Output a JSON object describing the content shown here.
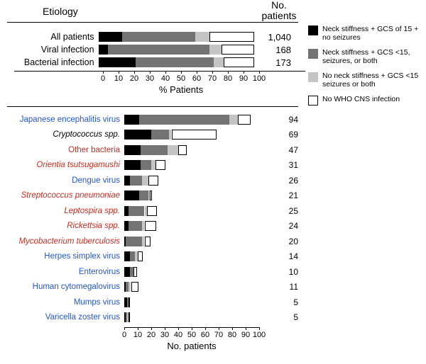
{
  "colors": {
    "seg0": "#000000",
    "seg1": "#737373",
    "seg2": "#c4c4c4",
    "seg3": "#ffffff",
    "border": "#000000"
  },
  "headers": {
    "etiology": "Etiology",
    "no_patients_line1": "No.",
    "no_patients_line2": "patients"
  },
  "axis_top": {
    "min": 0,
    "max": 100,
    "step": 10,
    "title": "% Patients"
  },
  "axis_bot": {
    "min": 0,
    "max": 100,
    "step": 10,
    "title": "No. patients"
  },
  "legend": [
    {
      "swatch": 0,
      "text": "Neck stiffness + GCS of 15 + no seizures"
    },
    {
      "swatch": 1,
      "text": "Neck stiffness + GCS <15, seizures, or both"
    },
    {
      "swatch": 2,
      "text": "No neck stiffness + GCS <15 seizures or both"
    },
    {
      "swatch": 3,
      "text": "No WHO CNS infection"
    }
  ],
  "top": [
    {
      "label": "All patients",
      "count": "1,040",
      "seg": [
        15,
        47,
        9,
        29
      ]
    },
    {
      "label": "Viral infection",
      "count": "168",
      "seg": [
        6,
        65,
        8,
        21
      ]
    },
    {
      "label": "Bacterial infection",
      "count": "173",
      "seg": [
        24,
        50,
        6,
        20
      ]
    }
  ],
  "bot": [
    {
      "label": "Japanese encephalitis virus",
      "cls": "blue",
      "count": "94",
      "seg": [
        11,
        67,
        6,
        10
      ]
    },
    {
      "label": "Cryptococcus spp.",
      "cls": "italic",
      "count": "69",
      "seg": [
        20,
        13,
        2,
        34
      ]
    },
    {
      "label": "Other bacteria",
      "cls": "red",
      "count": "47",
      "seg": [
        12,
        20,
        8,
        7
      ]
    },
    {
      "label": "Orientia tsutsugamushi",
      "cls": "red italic",
      "count": "31",
      "seg": [
        12,
        8,
        3,
        8
      ]
    },
    {
      "label": "Dengue virus",
      "cls": "blue",
      "count": "26",
      "seg": [
        4,
        9,
        5,
        8
      ]
    },
    {
      "label": "Streptococcus pneumoniae",
      "cls": "red italic",
      "count": "21",
      "seg": [
        11,
        7,
        1,
        2
      ]
    },
    {
      "label": "Leptospira spp.",
      "cls": "red italic",
      "count": "25",
      "seg": [
        3,
        12,
        2,
        8
      ]
    },
    {
      "label": "Rickettsia spp.",
      "cls": "red italic",
      "count": "24",
      "seg": [
        3,
        10,
        2,
        9
      ]
    },
    {
      "label": "Mycobacterium tuberculosis",
      "cls": "red italic",
      "count": "20",
      "seg": [
        1,
        12,
        2,
        5
      ]
    },
    {
      "label": "Herpes simplex virus",
      "cls": "blue",
      "count": "14",
      "seg": [
        4,
        4,
        2,
        4
      ]
    },
    {
      "label": "Enterovirus",
      "cls": "blue",
      "count": "10",
      "seg": [
        4,
        3,
        0,
        3
      ]
    },
    {
      "label": "Human cytomegalovirus",
      "cls": "blue",
      "count": "11",
      "seg": [
        1,
        2,
        2,
        6
      ]
    },
    {
      "label": "Mumps virus",
      "cls": "blue",
      "count": "5",
      "seg": [
        2,
        1,
        0,
        2
      ]
    },
    {
      "label": "Varicella zoster virus",
      "cls": "blue",
      "count": "5",
      "seg": [
        1,
        1,
        1,
        2
      ]
    }
  ]
}
